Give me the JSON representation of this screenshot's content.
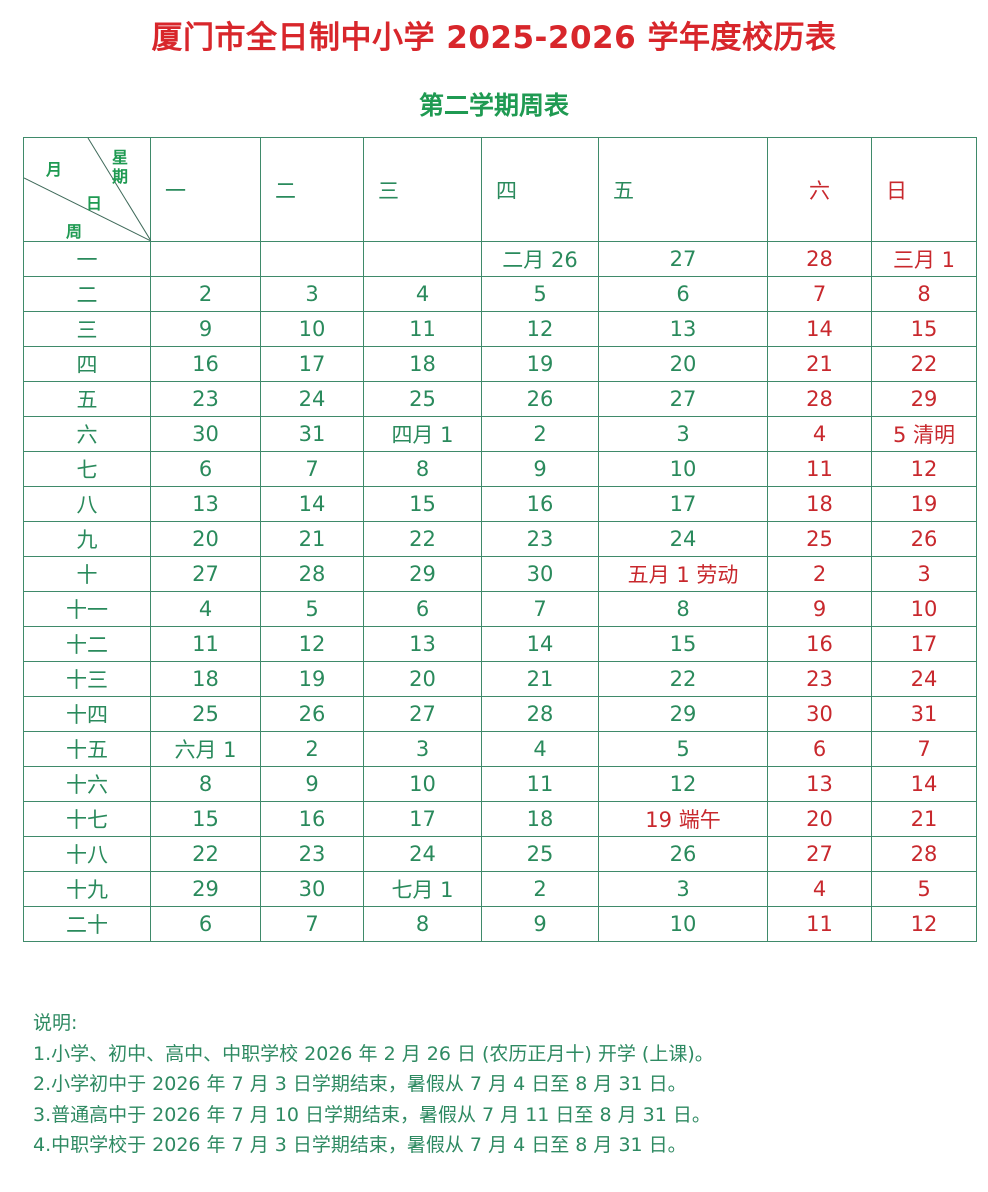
{
  "title": "厦门市全日制中小学 2025-2026 学年度校历表",
  "subtitle": "第二学期周表",
  "table": {
    "corner": {
      "month": "月",
      "weekday": "星期",
      "day": "日",
      "week": "周"
    },
    "weekdays": [
      "一",
      "二",
      "三",
      "四",
      "五",
      "六",
      "日"
    ],
    "rows": [
      {
        "week": "一",
        "days": [
          "",
          "",
          "",
          "二月 26",
          "27",
          "28",
          "三月 1"
        ]
      },
      {
        "week": "二",
        "days": [
          "2",
          "3",
          "4",
          "5",
          "6",
          "7",
          "8"
        ]
      },
      {
        "week": "三",
        "days": [
          "9",
          "10",
          "11",
          "12",
          "13",
          "14",
          "15"
        ]
      },
      {
        "week": "四",
        "days": [
          "16",
          "17",
          "18",
          "19",
          "20",
          "21",
          "22"
        ]
      },
      {
        "week": "五",
        "days": [
          "23",
          "24",
          "25",
          "26",
          "27",
          "28",
          "29"
        ]
      },
      {
        "week": "六",
        "days": [
          "30",
          "31",
          "四月 1",
          "2",
          "3",
          "4",
          "5 清明"
        ]
      },
      {
        "week": "七",
        "days": [
          "6",
          "7",
          "8",
          "9",
          "10",
          "11",
          "12"
        ]
      },
      {
        "week": "八",
        "days": [
          "13",
          "14",
          "15",
          "16",
          "17",
          "18",
          "19"
        ]
      },
      {
        "week": "九",
        "days": [
          "20",
          "21",
          "22",
          "23",
          "24",
          "25",
          "26"
        ]
      },
      {
        "week": "十",
        "days": [
          "27",
          "28",
          "29",
          "30",
          "五月 1 劳动",
          "2",
          "3"
        ],
        "holiday_col": 4
      },
      {
        "week": "十一",
        "days": [
          "4",
          "5",
          "6",
          "7",
          "8",
          "9",
          "10"
        ]
      },
      {
        "week": "十二",
        "days": [
          "11",
          "12",
          "13",
          "14",
          "15",
          "16",
          "17"
        ]
      },
      {
        "week": "十三",
        "days": [
          "18",
          "19",
          "20",
          "21",
          "22",
          "23",
          "24"
        ]
      },
      {
        "week": "十四",
        "days": [
          "25",
          "26",
          "27",
          "28",
          "29",
          "30",
          "31"
        ]
      },
      {
        "week": "十五",
        "days": [
          "六月 1",
          "2",
          "3",
          "4",
          "5",
          "6",
          "7"
        ]
      },
      {
        "week": "十六",
        "days": [
          "8",
          "9",
          "10",
          "11",
          "12",
          "13",
          "14"
        ]
      },
      {
        "week": "十七",
        "days": [
          "15",
          "16",
          "17",
          "18",
          "19 端午",
          "20",
          "21"
        ],
        "holiday_col": 4
      },
      {
        "week": "十八",
        "days": [
          "22",
          "23",
          "24",
          "25",
          "26",
          "27",
          "28"
        ]
      },
      {
        "week": "十九",
        "days": [
          "29",
          "30",
          "七月 1",
          "2",
          "3",
          "4",
          "5"
        ]
      },
      {
        "week": "二十",
        "days": [
          "6",
          "7",
          "8",
          "9",
          "10",
          "11",
          "12"
        ]
      }
    ]
  },
  "notes": {
    "heading": "说明:",
    "items": [
      "1.小学、初中、高中、中职学校 2026 年 2 月 26 日 (农历正月十) 开学 (上课)。",
      "2.小学初中于 2026 年 7 月 3 日学期结束，暑假从 7 月 4 日至 8 月 31 日。",
      "3.普通高中于 2026 年 7 月 10 日学期结束，暑假从 7 月 11 日至 8 月 31 日。",
      "4.中职学校于 2026 年 7 月 3 日学期结束，暑假从 7 月 4 日至 8 月 31 日。"
    ]
  },
  "colors": {
    "title": "#d8262b",
    "green": "#2a8a5c",
    "red": "#c8282d",
    "border": "#3f8a6a"
  }
}
